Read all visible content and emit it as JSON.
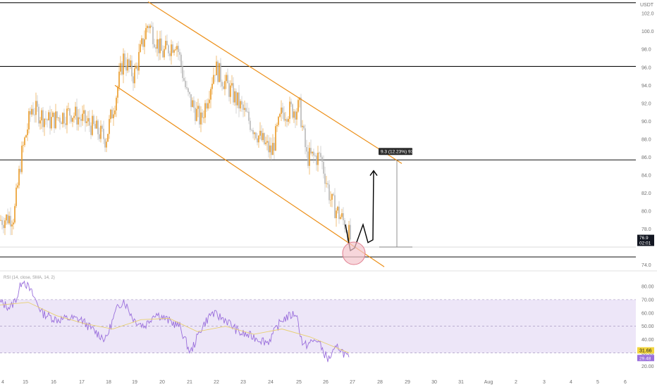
{
  "header": {
    "symbol_line": "",
    "currency": "USDT"
  },
  "chart_data": [
    {
      "type": "candlestick",
      "title": "",
      "ylim": [
        73.5,
        103.5
      ],
      "y_ticks": [
        102.0,
        100.0,
        98.0,
        96.0,
        94.0,
        92.0,
        90.0,
        88.0,
        86.0,
        84.0,
        82.0,
        80.0,
        78.0
      ],
      "bottom_tick": "74.0",
      "x_ticks": [
        "4",
        "15",
        "16",
        "17",
        "18",
        "19",
        "20",
        "21",
        "22",
        "23",
        "24",
        "25",
        "26",
        "27",
        "28",
        "29",
        "30",
        "31",
        "Aug",
        "2",
        "3",
        "4",
        "5",
        "6"
      ],
      "approx_close_path": [
        [
          0,
          79.0
        ],
        [
          20,
          79.5
        ],
        [
          30,
          86.0
        ],
        [
          45,
          91.5
        ],
        [
          70,
          90.0
        ],
        [
          100,
          91.0
        ],
        [
          130,
          89.5
        ],
        [
          150,
          88.0
        ],
        [
          165,
          93.0
        ],
        [
          175,
          97.0
        ],
        [
          190,
          95.0
        ],
        [
          210,
          101.0
        ],
        [
          230,
          97.5
        ],
        [
          250,
          99.0
        ],
        [
          265,
          93.0
        ],
        [
          285,
          90.0
        ],
        [
          305,
          96.0
        ],
        [
          330,
          93.0
        ],
        [
          350,
          90.5
        ],
        [
          370,
          88.0
        ],
        [
          385,
          86.5
        ],
        [
          400,
          91.0
        ],
        [
          425,
          91.5
        ],
        [
          435,
          86.0
        ],
        [
          455,
          86.0
        ],
        [
          470,
          81.0
        ],
        [
          490,
          78.5
        ],
        [
          497,
          76.9
        ]
      ],
      "horizontal_levels": [
        103.2,
        96.1,
        85.7,
        74.9
      ],
      "channel": {
        "upper": [
          [
            210,
            103.3
          ],
          [
            570,
            85.3
          ]
        ],
        "lower": [
          [
            163,
            94.0
          ],
          [
            545,
            73.8
          ]
        ]
      },
      "projection": [
        [
          490,
          78.5
        ],
        [
          497,
          75.6
        ],
        [
          503,
          75.9
        ],
        [
          515,
          78.5
        ],
        [
          522,
          76.5
        ],
        [
          529,
          76.8
        ],
        [
          530,
          84.5
        ]
      ],
      "measure_label": "9.3 (12.23%) 93",
      "measure_top": 85.7,
      "measure_bottom": 76.0,
      "current_price": "76.9",
      "countdown": "02:01",
      "highlight_circle_value": 75.3
    },
    {
      "type": "line",
      "title": "",
      "indicator_label": "RSI (14, close, SMA, 14, 2)",
      "ylim": [
        15,
        90
      ],
      "y_ticks": [
        "80.00",
        "70.00",
        "60.00",
        "50.00",
        "40.00",
        "30.00",
        "20.00"
      ],
      "band": [
        30,
        70
      ],
      "midline": 50,
      "series": [
        {
          "values_path": [
            [
              0,
              68
            ],
            [
              15,
              64
            ],
            [
              25,
              73
            ],
            [
              32,
              86
            ],
            [
              45,
              75
            ],
            [
              60,
              60
            ],
            [
              80,
              55
            ],
            [
              100,
              56
            ],
            [
              115,
              55
            ],
            [
              130,
              48
            ],
            [
              150,
              40
            ],
            [
              165,
              62
            ],
            [
              175,
              70
            ],
            [
              190,
              55
            ],
            [
              205,
              50
            ],
            [
              220,
              60
            ],
            [
              240,
              54
            ],
            [
              255,
              50
            ],
            [
              270,
              30
            ],
            [
              285,
              48
            ],
            [
              300,
              60
            ],
            [
              320,
              55
            ],
            [
              340,
              45
            ],
            [
              360,
              42
            ],
            [
              380,
              38
            ],
            [
              400,
              55
            ],
            [
              420,
              60
            ],
            [
              430,
              35
            ],
            [
              450,
              40
            ],
            [
              465,
              25
            ],
            [
              480,
              35
            ],
            [
              495,
              25
            ]
          ]
        },
        {
          "values_path": [
            [
              0,
              66
            ],
            [
              40,
              68
            ],
            [
              80,
              58
            ],
            [
              120,
              52
            ],
            [
              160,
              48
            ],
            [
              200,
              55
            ],
            [
              240,
              56
            ],
            [
              280,
              46
            ],
            [
              320,
              50
            ],
            [
              360,
              44
            ],
            [
              400,
              48
            ],
            [
              440,
              42
            ],
            [
              495,
              30
            ]
          ]
        }
      ],
      "rsi_value": "31.66",
      "sma_value": "29.48"
    }
  ],
  "colors": {
    "candle_up": "#e99924",
    "candle_down": "#b8b8b8",
    "channel": "#ec8e16",
    "rsi_line": "#9a6fdc",
    "rsi_sma": "#e8d070",
    "rsi_band": "#ede6f8",
    "circle": "#e89aa6"
  }
}
